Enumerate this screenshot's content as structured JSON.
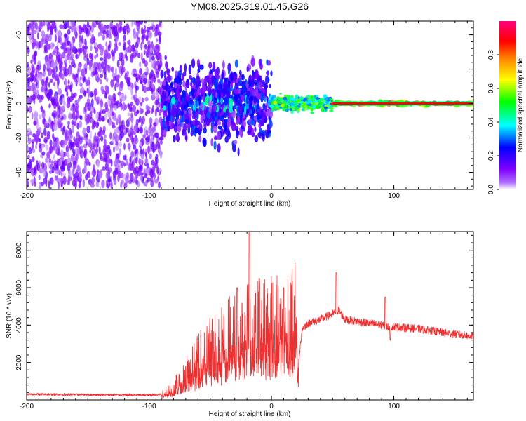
{
  "figure": {
    "title": "YM08.2025.319.01.45.G26"
  },
  "chart_data": [
    {
      "type": "heatmap",
      "title": "",
      "xlabel": "Height of straight line (km)",
      "ylabel": "Frequency (Hz)",
      "xlim": [
        -200,
        165
      ],
      "ylim": [
        -50,
        48
      ],
      "x_ticks": [
        -200,
        -100,
        0,
        100
      ],
      "y_ticks": [
        -40,
        -20,
        0,
        20,
        40
      ],
      "colorbar": {
        "label": "Normalized spectral amplitude",
        "range": [
          0,
          1
        ],
        "ticks": [
          "0.0",
          "0.2",
          "0.4",
          "0.6",
          "0.8"
        ],
        "colors": [
          "#ffffff",
          "#7f00ff",
          "#0000ff",
          "#00ffff",
          "#00ff00",
          "#ffff00",
          "#ff8000",
          "#ff0000",
          "#ff0080"
        ]
      },
      "line_frequency_hz": 0,
      "regions": [
        {
          "x_range": [
            -200,
            -90
          ],
          "freq_spread_hz": 48,
          "amplitude": "0.0-0.15"
        },
        {
          "x_range": [
            -90,
            0
          ],
          "freq_spread_hz": 30,
          "amplitude": "0.05-0.3"
        },
        {
          "x_range": [
            0,
            50
          ],
          "freq_spread_hz": 6,
          "amplitude": "0.3-0.6"
        },
        {
          "x_range": [
            50,
            165
          ],
          "freq_spread_hz": 2,
          "amplitude": "0.7-0.95"
        }
      ]
    },
    {
      "type": "line",
      "title": "",
      "xlabel": "Height of straight line (km)",
      "ylabel": "SNR (10 * v/v)",
      "xlim": [
        -200,
        165
      ],
      "ylim": [
        0,
        9000
      ],
      "x_ticks": [
        -200,
        -100,
        0,
        100
      ],
      "y_ticks": [
        2000,
        4000,
        6000,
        8000
      ],
      "color": "#f03030",
      "series": [
        {
          "x": [
            -200,
            -150,
            -100,
            -90,
            -80,
            -70,
            -60,
            -50,
            -40,
            -30,
            -20,
            -15,
            -10,
            -5,
            0,
            10,
            20,
            22,
            25,
            30,
            40,
            50,
            55,
            60,
            70,
            80,
            90,
            95,
            100,
            120,
            140,
            165
          ],
          "values": [
            300,
            280,
            260,
            300,
            600,
            1400,
            2000,
            2600,
            3000,
            3300,
            3600,
            3800,
            3800,
            3900,
            4000,
            4100,
            4200,
            1800,
            3800,
            4100,
            4300,
            4600,
            4800,
            4300,
            4200,
            4100,
            4000,
            3900,
            3900,
            3800,
            3600,
            3400
          ],
          "peaks": [
            [
              -18,
              9000
            ],
            [
              -10,
              6500
            ],
            [
              -28,
              6000
            ],
            [
              10,
              6000
            ],
            [
              53,
              6800
            ],
            [
              93,
              5500
            ],
            [
              97,
              3200
            ]
          ]
        }
      ]
    }
  ]
}
